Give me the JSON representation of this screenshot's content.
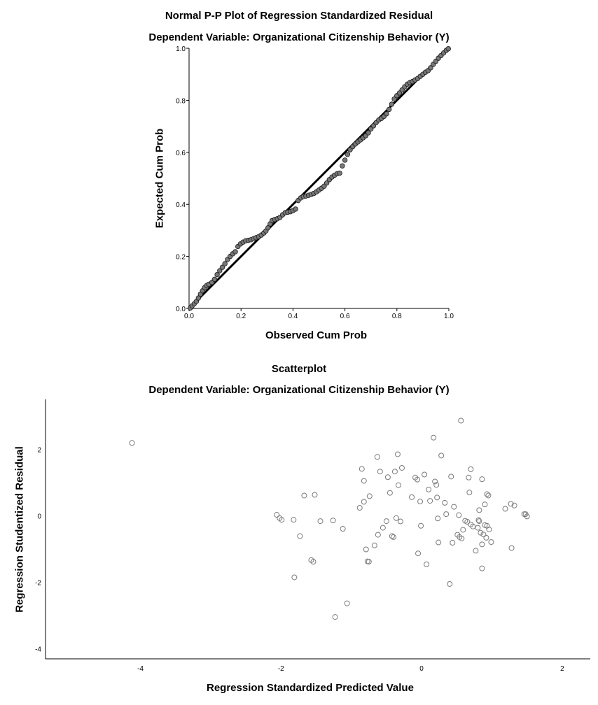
{
  "charts": {
    "pp": {
      "title": "Normal P-P Plot of Regression Standardized Residual",
      "subtitle": "Dependent Variable: Organizational Citizenship Behavior (Y)",
      "xlabel": "Observed Cum Prob",
      "ylabel": "Expected Cum Prob"
    },
    "scatter": {
      "title": "Scatterplot",
      "subtitle": "Dependent Variable: Organizational Citizenship Behavior (Y)",
      "xlabel": "Regression Standardized Predicted Value",
      "ylabel": "Regression Studentized Residual"
    }
  },
  "chart_data": [
    {
      "type": "scatter",
      "title": "Normal P-P Plot of Regression Standardized Residual",
      "subtitle": "Dependent Variable: Organizational Citizenship Behavior (Y)",
      "xlabel": "Observed Cum Prob",
      "ylabel": "Expected Cum Prob",
      "xlim": [
        0,
        1
      ],
      "ylim": [
        0,
        1
      ],
      "xticks": [
        "0.0",
        "0.2",
        "0.4",
        "0.6",
        "0.8",
        "1.0"
      ],
      "yticks": [
        "0.0",
        "0.2",
        "0.4",
        "0.6",
        "0.8",
        "1.0"
      ],
      "reference_line": [
        [
          0,
          0
        ],
        [
          1,
          1
        ]
      ],
      "marker_fill": "#777777",
      "line_color": "#000000",
      "grid": false,
      "points": [
        [
          0.005,
          0.002
        ],
        [
          0.012,
          0.01
        ],
        [
          0.02,
          0.018
        ],
        [
          0.028,
          0.027
        ],
        [
          0.036,
          0.04
        ],
        [
          0.044,
          0.055
        ],
        [
          0.052,
          0.068
        ],
        [
          0.06,
          0.08
        ],
        [
          0.068,
          0.088
        ],
        [
          0.076,
          0.093
        ],
        [
          0.088,
          0.1
        ],
        [
          0.098,
          0.112
        ],
        [
          0.108,
          0.13
        ],
        [
          0.118,
          0.145
        ],
        [
          0.128,
          0.158
        ],
        [
          0.138,
          0.172
        ],
        [
          0.148,
          0.188
        ],
        [
          0.158,
          0.2
        ],
        [
          0.168,
          0.21
        ],
        [
          0.178,
          0.218
        ],
        [
          0.188,
          0.238
        ],
        [
          0.198,
          0.248
        ],
        [
          0.208,
          0.255
        ],
        [
          0.218,
          0.26
        ],
        [
          0.228,
          0.262
        ],
        [
          0.238,
          0.264
        ],
        [
          0.248,
          0.268
        ],
        [
          0.258,
          0.272
        ],
        [
          0.268,
          0.276
        ],
        [
          0.278,
          0.282
        ],
        [
          0.288,
          0.29
        ],
        [
          0.296,
          0.298
        ],
        [
          0.304,
          0.31
        ],
        [
          0.312,
          0.325
        ],
        [
          0.32,
          0.338
        ],
        [
          0.33,
          0.342
        ],
        [
          0.34,
          0.345
        ],
        [
          0.35,
          0.35
        ],
        [
          0.36,
          0.36
        ],
        [
          0.37,
          0.368
        ],
        [
          0.38,
          0.37
        ],
        [
          0.39,
          0.372
        ],
        [
          0.4,
          0.376
        ],
        [
          0.41,
          0.382
        ],
        [
          0.42,
          0.415
        ],
        [
          0.43,
          0.425
        ],
        [
          0.44,
          0.43
        ],
        [
          0.45,
          0.432
        ],
        [
          0.46,
          0.435
        ],
        [
          0.47,
          0.438
        ],
        [
          0.48,
          0.442
        ],
        [
          0.49,
          0.448
        ],
        [
          0.5,
          0.455
        ],
        [
          0.51,
          0.462
        ],
        [
          0.52,
          0.47
        ],
        [
          0.53,
          0.482
        ],
        [
          0.54,
          0.495
        ],
        [
          0.55,
          0.505
        ],
        [
          0.56,
          0.512
        ],
        [
          0.57,
          0.518
        ],
        [
          0.58,
          0.52
        ],
        [
          0.59,
          0.548
        ],
        [
          0.6,
          0.57
        ],
        [
          0.61,
          0.592
        ],
        [
          0.62,
          0.61
        ],
        [
          0.63,
          0.622
        ],
        [
          0.64,
          0.632
        ],
        [
          0.65,
          0.64
        ],
        [
          0.66,
          0.648
        ],
        [
          0.67,
          0.656
        ],
        [
          0.68,
          0.664
        ],
        [
          0.69,
          0.675
        ],
        [
          0.7,
          0.69
        ],
        [
          0.71,
          0.702
        ],
        [
          0.72,
          0.714
        ],
        [
          0.73,
          0.724
        ],
        [
          0.74,
          0.73
        ],
        [
          0.75,
          0.738
        ],
        [
          0.76,
          0.748
        ],
        [
          0.77,
          0.765
        ],
        [
          0.78,
          0.785
        ],
        [
          0.79,
          0.805
        ],
        [
          0.8,
          0.818
        ],
        [
          0.81,
          0.828
        ],
        [
          0.82,
          0.84
        ],
        [
          0.83,
          0.852
        ],
        [
          0.84,
          0.862
        ],
        [
          0.85,
          0.868
        ],
        [
          0.86,
          0.872
        ],
        [
          0.87,
          0.878
        ],
        [
          0.88,
          0.884
        ],
        [
          0.89,
          0.892
        ],
        [
          0.9,
          0.9
        ],
        [
          0.91,
          0.908
        ],
        [
          0.92,
          0.914
        ],
        [
          0.93,
          0.925
        ],
        [
          0.94,
          0.938
        ],
        [
          0.95,
          0.95
        ],
        [
          0.96,
          0.962
        ],
        [
          0.97,
          0.972
        ],
        [
          0.98,
          0.982
        ],
        [
          0.99,
          0.992
        ],
        [
          0.998,
          0.998
        ]
      ]
    },
    {
      "type": "scatter",
      "title": "Scatterplot",
      "subtitle": "Dependent Variable: Organizational Citizenship Behavior (Y)",
      "xlabel": "Regression Standardized Predicted Value",
      "ylabel": "Regression Studentized Residual",
      "xlim": [
        -5.35,
        2.4
      ],
      "ylim": [
        -4.3,
        3.5
      ],
      "xticks": [
        -4,
        -2,
        0,
        2
      ],
      "yticks": [
        -4,
        -2,
        0,
        2
      ],
      "marker": "hollow circle",
      "marker_color": "#7a7a7a",
      "grid": false,
      "points": [
        [
          -4.12,
          2.19
        ],
        [
          -2.06,
          0.03
        ],
        [
          -2.02,
          -0.07
        ],
        [
          -1.99,
          -0.12
        ],
        [
          -1.82,
          -0.12
        ],
        [
          -1.81,
          -1.85
        ],
        [
          -1.73,
          -0.61
        ],
        [
          -1.67,
          0.61
        ],
        [
          -1.57,
          -1.33
        ],
        [
          -1.54,
          -1.38
        ],
        [
          -1.52,
          0.63
        ],
        [
          -1.44,
          -0.16
        ],
        [
          -1.26,
          -0.14
        ],
        [
          -1.12,
          -0.39
        ],
        [
          -1.06,
          -2.63
        ],
        [
          -1.23,
          -3.04
        ],
        [
          -0.88,
          0.24
        ],
        [
          -0.85,
          1.41
        ],
        [
          -0.82,
          0.42
        ],
        [
          -0.82,
          1.05
        ],
        [
          -0.79,
          -1.01
        ],
        [
          -0.77,
          -1.37
        ],
        [
          -0.75,
          -1.38
        ],
        [
          -0.74,
          0.59
        ],
        [
          -0.67,
          -0.89
        ],
        [
          -0.63,
          1.77
        ],
        [
          -0.62,
          -0.57
        ],
        [
          -0.59,
          1.33
        ],
        [
          -0.55,
          -0.36
        ],
        [
          -0.5,
          -0.16
        ],
        [
          -0.48,
          1.16
        ],
        [
          -0.45,
          0.69
        ],
        [
          -0.42,
          -0.61
        ],
        [
          -0.4,
          -0.64
        ],
        [
          -0.38,
          1.33
        ],
        [
          -0.36,
          -0.07
        ],
        [
          -0.34,
          1.85
        ],
        [
          -0.33,
          0.92
        ],
        [
          -0.3,
          -0.17
        ],
        [
          -0.28,
          1.44
        ],
        [
          -0.14,
          0.56
        ],
        [
          -0.09,
          1.15
        ],
        [
          -0.06,
          1.09
        ],
        [
          -0.05,
          -1.13
        ],
        [
          -0.02,
          0.43
        ],
        [
          -0.01,
          -0.3
        ],
        [
          0.04,
          1.24
        ],
        [
          0.07,
          -1.46
        ],
        [
          0.1,
          0.79
        ],
        [
          0.12,
          0.45
        ],
        [
          0.17,
          2.35
        ],
        [
          0.19,
          1.03
        ],
        [
          0.21,
          0.93
        ],
        [
          0.22,
          0.55
        ],
        [
          0.23,
          -0.08
        ],
        [
          0.24,
          -0.8
        ],
        [
          0.28,
          1.81
        ],
        [
          0.33,
          0.39
        ],
        [
          0.35,
          0.05
        ],
        [
          0.4,
          -2.05
        ],
        [
          0.42,
          1.18
        ],
        [
          0.44,
          -0.81
        ],
        [
          0.46,
          0.27
        ],
        [
          0.51,
          -0.57
        ],
        [
          0.53,
          0.02
        ],
        [
          0.54,
          -0.64
        ],
        [
          0.56,
          2.86
        ],
        [
          0.57,
          -0.68
        ],
        [
          0.59,
          -0.42
        ],
        [
          0.62,
          -0.15
        ],
        [
          0.65,
          -0.18
        ],
        [
          0.67,
          1.15
        ],
        [
          0.68,
          0.7
        ],
        [
          0.7,
          1.4
        ],
        [
          0.7,
          -0.26
        ],
        [
          0.73,
          -0.32
        ],
        [
          0.77,
          -1.05
        ],
        [
          0.8,
          -0.36
        ],
        [
          0.81,
          -0.13
        ],
        [
          0.82,
          -0.16
        ],
        [
          0.82,
          0.17
        ],
        [
          0.84,
          -0.51
        ],
        [
          0.86,
          -0.86
        ],
        [
          0.86,
          -1.58
        ],
        [
          0.86,
          1.1
        ],
        [
          0.88,
          -0.56
        ],
        [
          0.9,
          0.34
        ],
        [
          0.9,
          -0.28
        ],
        [
          0.92,
          -0.66
        ],
        [
          0.93,
          -0.3
        ],
        [
          0.93,
          0.65
        ],
        [
          0.95,
          0.61
        ],
        [
          0.96,
          -0.41
        ],
        [
          0.99,
          -0.79
        ],
        [
          1.19,
          0.21
        ],
        [
          1.27,
          0.36
        ],
        [
          1.28,
          -0.97
        ],
        [
          1.32,
          0.31
        ],
        [
          1.46,
          0.05
        ],
        [
          1.48,
          0.05
        ],
        [
          1.5,
          -0.02
        ]
      ]
    }
  ]
}
